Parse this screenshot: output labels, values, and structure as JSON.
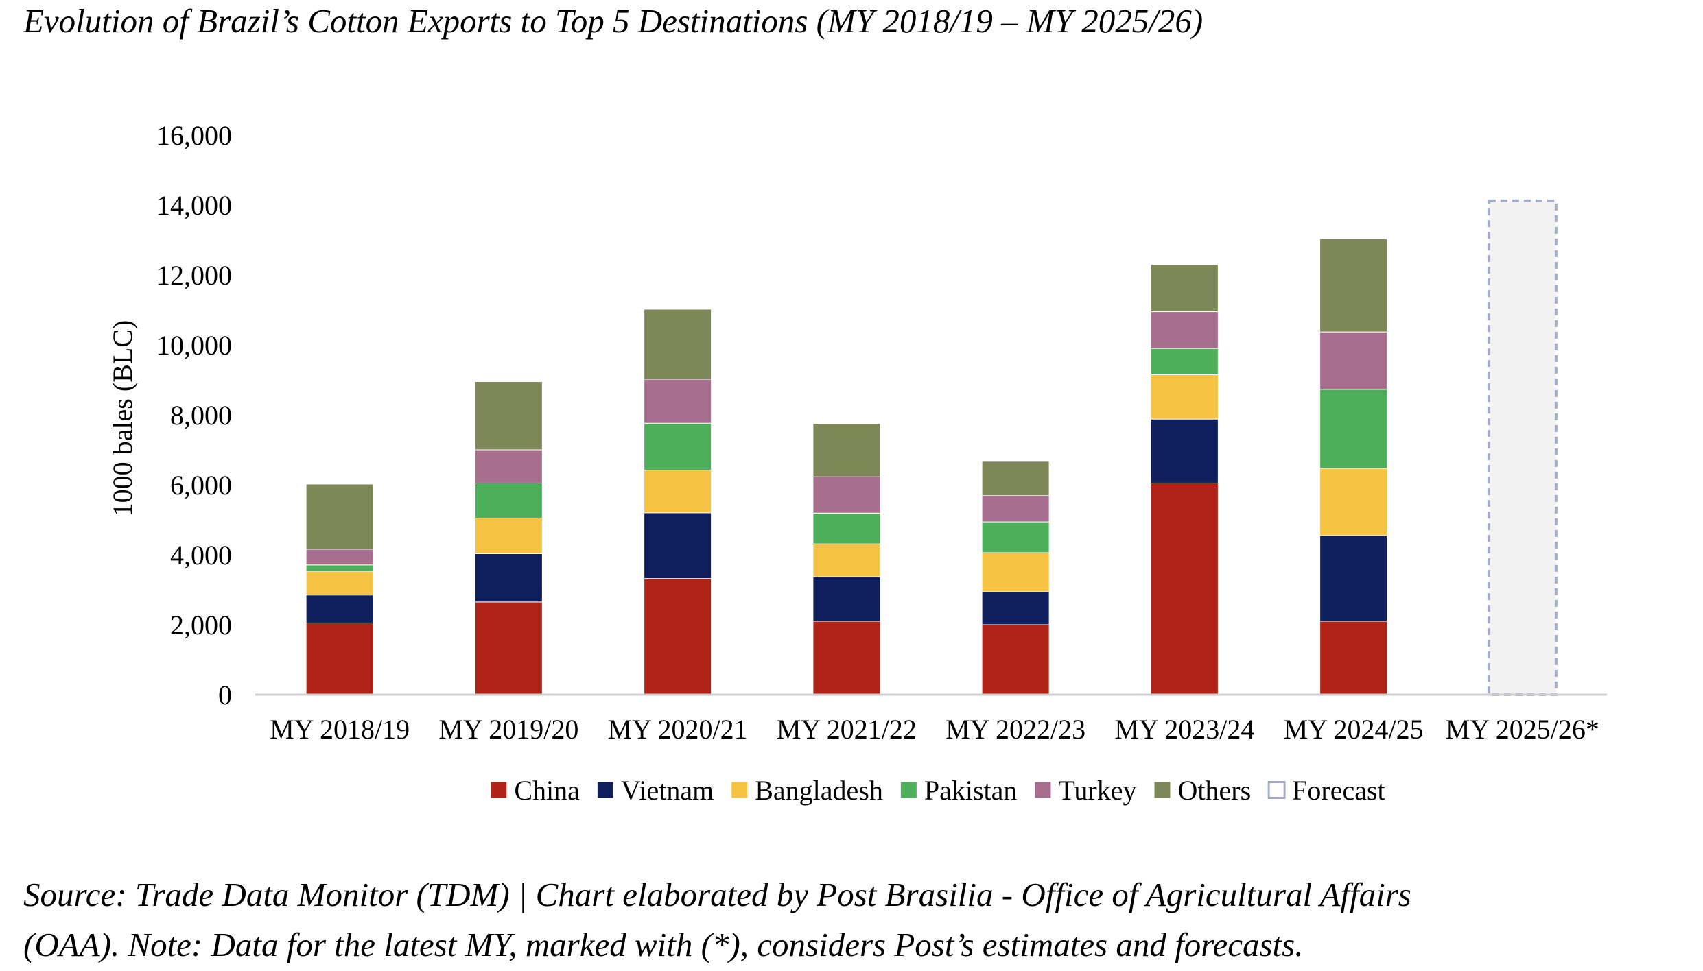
{
  "title": "Evolution of Brazil’s Cotton Exports to Top 5 Destinations (MY 2018/19 – MY 2025/26)",
  "footnote": {
    "line1": "Source: Trade Data Monitor (TDM) | Chart elaborated by Post Brasilia - Office of Agricultural Affairs",
    "line2": "(OAA). Note: Data for the latest MY, marked with (*), considers Post’s estimates and forecasts."
  },
  "chart_data": {
    "type": "bar",
    "stacked": true,
    "title": "Evolution of Brazil’s Cotton Exports to Top 5 Destinations (MY 2018/19 – MY 2025/26)",
    "xlabel": "",
    "ylabel": "1000 bales (BLC)",
    "ylim": [
      0,
      16000
    ],
    "yticks": [
      0,
      2000,
      4000,
      6000,
      8000,
      10000,
      12000,
      14000,
      16000
    ],
    "ytick_labels": [
      "0",
      "2,000",
      "4,000",
      "6,000",
      "8,000",
      "10,000",
      "12,000",
      "14,000",
      "16,000"
    ],
    "grid": false,
    "legend_position": "bottom",
    "categories": [
      "MY 2018/19",
      "MY 2019/20",
      "MY 2020/21",
      "MY 2021/22",
      "MY 2022/23",
      "MY 2023/24",
      "MY 2024/25",
      "MY 2025/26*"
    ],
    "series": [
      {
        "name": "China",
        "color": "#B02418",
        "values": [
          2050,
          2650,
          3320,
          2100,
          2000,
          6050,
          2100,
          null
        ]
      },
      {
        "name": "Vietnam",
        "color": "#0F1E5C",
        "values": [
          800,
          1380,
          1880,
          1270,
          940,
          1830,
          2450,
          null
        ]
      },
      {
        "name": "Bangladesh",
        "color": "#F5C242",
        "values": [
          680,
          1020,
          1220,
          940,
          1120,
          1270,
          1920,
          null
        ]
      },
      {
        "name": "Pakistan",
        "color": "#4DAF5A",
        "values": [
          180,
          1000,
          1340,
          880,
          880,
          750,
          2260,
          null
        ]
      },
      {
        "name": "Turkey",
        "color": "#A86E8E",
        "values": [
          450,
          950,
          1260,
          1040,
          750,
          1050,
          1640,
          null
        ]
      },
      {
        "name": "Others",
        "color": "#7E8757",
        "values": [
          1860,
          1950,
          2000,
          1520,
          980,
          1350,
          2660,
          null
        ]
      },
      {
        "name": "Forecast",
        "color": "#A5ACC8",
        "fill": "#F2F2F2",
        "dashed": true,
        "values": [
          null,
          null,
          null,
          null,
          null,
          null,
          null,
          14120
        ]
      }
    ]
  }
}
